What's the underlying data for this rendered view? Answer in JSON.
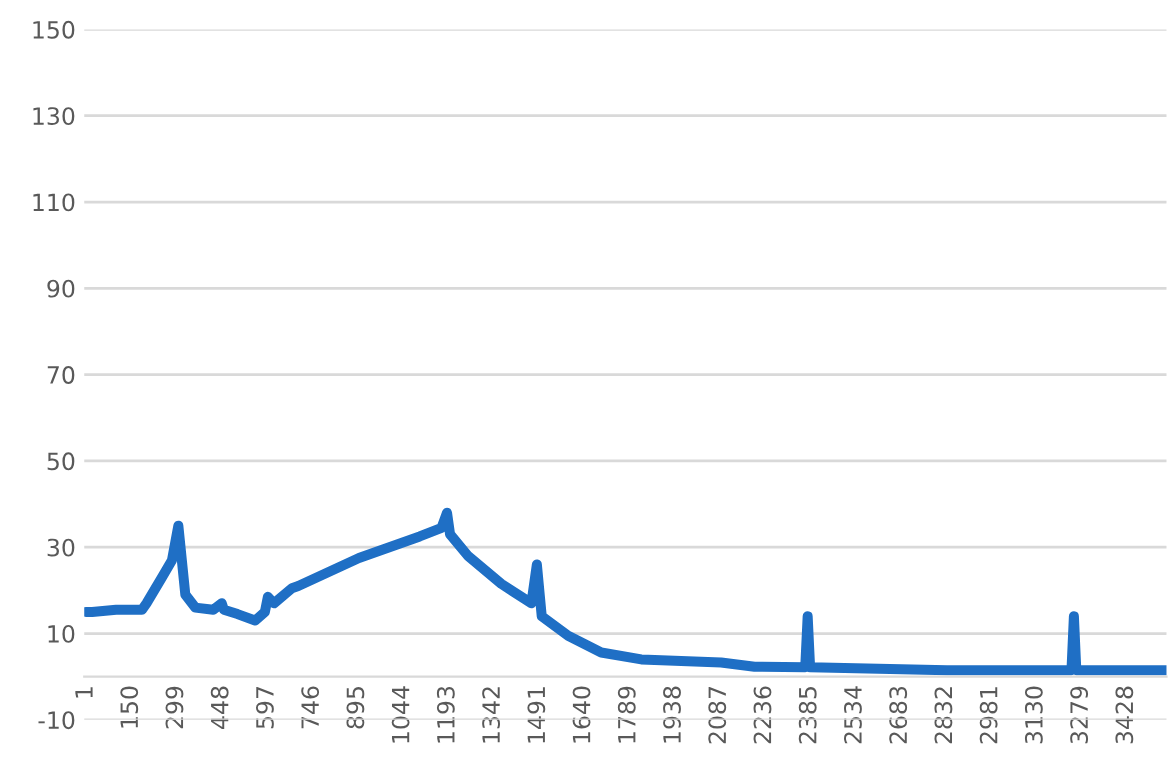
{
  "chart_data": {
    "type": "line",
    "x": [
      1,
      21,
      100,
      185,
      200,
      251,
      284,
      305,
      328,
      361,
      420,
      448,
      455,
      500,
      558,
      590,
      600,
      620,
      679,
      700,
      900,
      1100,
      1172,
      1190,
      1200,
      1259,
      1369,
      1468,
      1486,
      1502,
      1589,
      1698,
      1830,
      2093,
      2203,
      2370,
      2378,
      2386,
      2837,
      3247,
      3255,
      3263,
      3560
    ],
    "series": [
      {
        "color": "#1f6fc5",
        "values": [
          15,
          15,
          15.5,
          15.5,
          17,
          23,
          27,
          35,
          19,
          16,
          15.5,
          17,
          15.5,
          14.5,
          13,
          15,
          18.5,
          17,
          20.5,
          21,
          27.5,
          32.5,
          34.5,
          38,
          33,
          28,
          21.5,
          17,
          26,
          14,
          9.5,
          5.6,
          4,
          3.3,
          2.3,
          2.2,
          14,
          2.2,
          1.5,
          1.5,
          14,
          1.5,
          1.5
        ]
      }
    ],
    "xlim": [
      -5,
      3560
    ],
    "xticks": [
      1,
      150,
      299,
      448,
      597,
      746,
      895,
      1044,
      1193,
      1342,
      1491,
      1640,
      1789,
      1938,
      2087,
      2236,
      2385,
      2534,
      2683,
      2832,
      2981,
      3130,
      3279,
      3428
    ],
    "ylim": [
      -10,
      150
    ],
    "yticks": [
      -10,
      10,
      30,
      50,
      70,
      90,
      110,
      130,
      150
    ],
    "grid": "y",
    "legend": false
  }
}
